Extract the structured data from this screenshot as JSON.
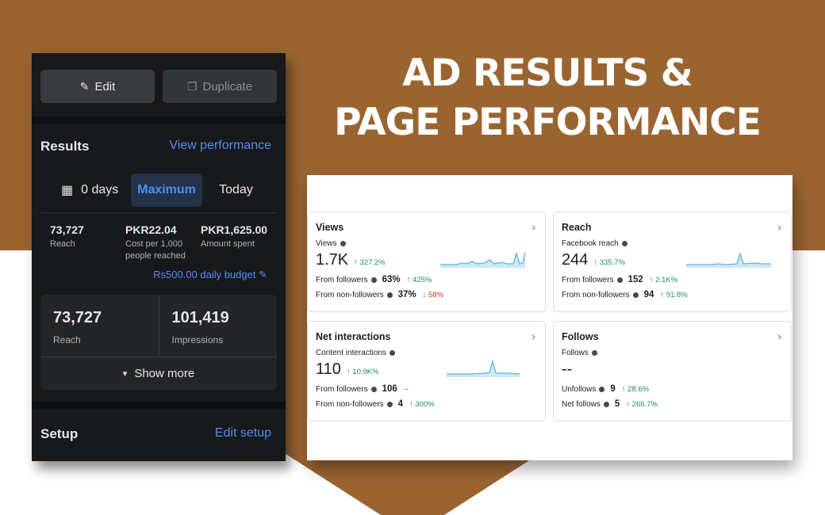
{
  "headline": {
    "line1": "AD RESULTS &",
    "line2": "PAGE PERFORMANCE"
  },
  "colors": {
    "brand_brown": "#9a6431",
    "dark_panel": "#18191a",
    "link_blue": "#4d8ef5",
    "up_green": "#1a8c6b",
    "down_red": "#c0392b"
  },
  "ad_panel": {
    "edit_label": "Edit",
    "duplicate_label": "Duplicate",
    "results_title": "Results",
    "view_performance": "View performance",
    "tabs": [
      {
        "label": "0 days",
        "icon": "calendar-icon"
      },
      {
        "label": "Maximum",
        "active": true
      },
      {
        "label": "Today"
      }
    ],
    "metrics": [
      {
        "value": "73,727",
        "label": "Reach"
      },
      {
        "value": "PKR22.04",
        "label": "Cost per 1,000 people reached"
      },
      {
        "value": "PKR1,625.00",
        "label": "Amount spent"
      }
    ],
    "budget": "Rs500.00 daily budget",
    "card": [
      {
        "value": "73,727",
        "label": "Reach"
      },
      {
        "value": "101,419",
        "label": "Impressions"
      }
    ],
    "show_more": "Show more",
    "setup_title": "Setup",
    "edit_setup": "Edit setup"
  },
  "insights": {
    "views": {
      "title": "Views",
      "sub": "Views",
      "big": "1.7K",
      "pct": "↑ 327.2%",
      "rows": [
        {
          "label": "From followers",
          "value": "63%",
          "change": "↑ 425%",
          "dir": "up"
        },
        {
          "label": "From non-followers",
          "value": "37%",
          "change": "↓ 58%",
          "dir": "down"
        }
      ]
    },
    "reach": {
      "title": "Reach",
      "sub": "Facebook reach",
      "big": "244",
      "pct": "↑ 335.7%",
      "rows": [
        {
          "label": "From followers",
          "value": "152",
          "change": "↑ 2.1K%",
          "dir": "up"
        },
        {
          "label": "From non-followers",
          "value": "94",
          "change": "↑ 91.8%",
          "dir": "up"
        }
      ]
    },
    "interactions": {
      "title": "Net interactions",
      "sub": "Content interactions",
      "big": "110",
      "pct": "↑ 10.9K%",
      "rows": [
        {
          "label": "From followers",
          "value": "106",
          "change": "--",
          "dir": "none"
        },
        {
          "label": "From non-followers",
          "value": "4",
          "change": "↑ 300%",
          "dir": "up"
        }
      ]
    },
    "follows": {
      "title": "Follows",
      "sub": "Follows",
      "big": "--",
      "rows": [
        {
          "label": "Unfollows",
          "value": "9",
          "change": "↑ 28.6%",
          "dir": "up"
        },
        {
          "label": "Net follows",
          "value": "5",
          "change": "↑ 266.7%",
          "dir": "up"
        }
      ]
    }
  }
}
